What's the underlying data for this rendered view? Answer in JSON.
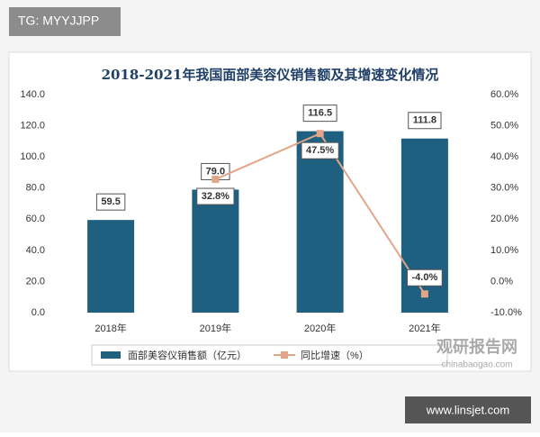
{
  "overlay": {
    "tag": "TG: MYYJJPP",
    "logo": "观研报告网",
    "logo_url": "chinabaogao.com",
    "site": "www.linsjet.com"
  },
  "chart_data": {
    "type": "bar",
    "title": "2018-2021年我国面部美容仪销售额及其增速变化情况",
    "categories": [
      "2018年",
      "2019年",
      "2020年",
      "2021年"
    ],
    "series": [
      {
        "name": "面部美容仪销售额（亿元）",
        "type": "bar",
        "color": "#1f5f80",
        "values": [
          59.5,
          79.0,
          116.5,
          111.8
        ],
        "value_labels": [
          "59.5",
          "79.0",
          "116.5",
          "111.8"
        ]
      },
      {
        "name": "同比增速（%）",
        "type": "line",
        "axis": "y2",
        "color": "#e3a587",
        "values": [
          null,
          32.8,
          47.5,
          -4.0
        ],
        "value_labels": [
          null,
          "32.8%",
          "47.5%",
          "-4.0%"
        ]
      }
    ],
    "ylim": [
      0,
      140
    ],
    "yticks": [
      {
        "value": 0,
        "label": "0.0"
      },
      {
        "value": 20,
        "label": "20.0"
      },
      {
        "value": 40,
        "label": "40.0"
      },
      {
        "value": 60,
        "label": "60.0"
      },
      {
        "value": 80,
        "label": "80.0"
      },
      {
        "value": 100,
        "label": "100.0"
      },
      {
        "value": 120,
        "label": "120.0"
      },
      {
        "value": 140,
        "label": "140.0"
      }
    ],
    "y2lim": [
      -10,
      60
    ],
    "y2ticks": [
      {
        "value": -10,
        "label": "-10.0%"
      },
      {
        "value": 0,
        "label": "0.0%"
      },
      {
        "value": 10,
        "label": "10.0%"
      },
      {
        "value": 20,
        "label": "20.0%"
      },
      {
        "value": 30,
        "label": "30.0%"
      },
      {
        "value": 40,
        "label": "40.0%"
      },
      {
        "value": 50,
        "label": "50.0%"
      },
      {
        "value": 60,
        "label": "60.0%"
      }
    ],
    "grid": false,
    "legend": "bottom"
  }
}
